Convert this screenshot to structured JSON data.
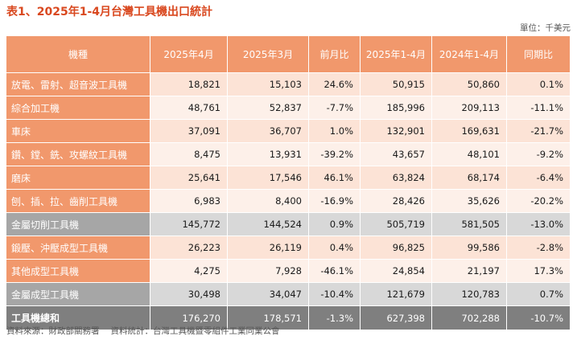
{
  "title": "表1、2025年1-4月台灣工具機出口統計",
  "unit": "單位：千美元",
  "headers": [
    "機種",
    "2025年4月",
    "2025年3月",
    "前月比",
    "2025年1-4月",
    "2024年1-4月",
    "同期比"
  ],
  "rows": [
    {
      "name": "放電、雷射、超音波工具機",
      "apr2025": "18,821",
      "mar2025": "15,103",
      "mom": "24.6%",
      "ytd2025": "50,915",
      "ytd2024": "50,860",
      "yoy": "0.1%"
    },
    {
      "name": "綜合加工機",
      "apr2025": "48,761",
      "mar2025": "52,837",
      "mom": "-7.7%",
      "ytd2025": "185,996",
      "ytd2024": "209,113",
      "yoy": "-11.1%"
    },
    {
      "name": "車床",
      "apr2025": "37,091",
      "mar2025": "36,707",
      "mom": "1.0%",
      "ytd2025": "132,901",
      "ytd2024": "169,631",
      "yoy": "-21.7%"
    },
    {
      "name": "鑽、鏜、銑、攻螺紋工具機",
      "apr2025": "8,475",
      "mar2025": "13,931",
      "mom": "-39.2%",
      "ytd2025": "43,657",
      "ytd2024": "48,101",
      "yoy": "-9.2%"
    },
    {
      "name": "磨床",
      "apr2025": "25,641",
      "mar2025": "17,546",
      "mom": "46.1%",
      "ytd2025": "63,824",
      "ytd2024": "68,174",
      "yoy": "-6.4%"
    },
    {
      "name": "刨、插、拉、齒削工具機",
      "apr2025": "6,983",
      "mar2025": "8,400",
      "mom": "-16.9%",
      "ytd2025": "28,426",
      "ytd2024": "35,626",
      "yoy": "-20.2%"
    },
    {
      "name": "金屬切削工具機",
      "apr2025": "145,772",
      "mar2025": "144,524",
      "mom": "0.9%",
      "ytd2025": "505,719",
      "ytd2024": "581,505",
      "yoy": "-13.0%"
    },
    {
      "name": "鍛壓、沖壓成型工具機",
      "apr2025": "26,223",
      "mar2025": "26,119",
      "mom": "0.4%",
      "ytd2025": "96,825",
      "ytd2024": "99,586",
      "yoy": "-2.8%"
    },
    {
      "name": "其他成型工具機",
      "apr2025": "4,275",
      "mar2025": "7,928",
      "mom": "-46.1%",
      "ytd2025": "24,854",
      "ytd2024": "21,197",
      "yoy": "17.3%"
    },
    {
      "name": "金屬成型工具機",
      "apr2025": "30,498",
      "mar2025": "34,047",
      "mom": "-10.4%",
      "ytd2025": "121,679",
      "ytd2024": "120,783",
      "yoy": "0.7%"
    },
    {
      "name": "工具機總和",
      "apr2025": "176,270",
      "mar2025": "178,571",
      "mom": "-1.3%",
      "ytd2025": "627,398",
      "ytd2024": "702,288",
      "yoy": "-10.7%"
    }
  ],
  "source": {
    "data_source": "資料來源：財政部關務署",
    "compiled_by": "資料統計：台灣工具機暨零組件工業同業公會"
  },
  "colors": {
    "title": "#d9481f",
    "header_bg": "#f1986c",
    "row_odd_bg": "#fce3d6",
    "row_even_bg": "#fdf0e9",
    "subtotal_label_bg": "#a6a6a6",
    "subtotal_bg": "#d8d8d8",
    "total_bg": "#7f7f7f"
  }
}
